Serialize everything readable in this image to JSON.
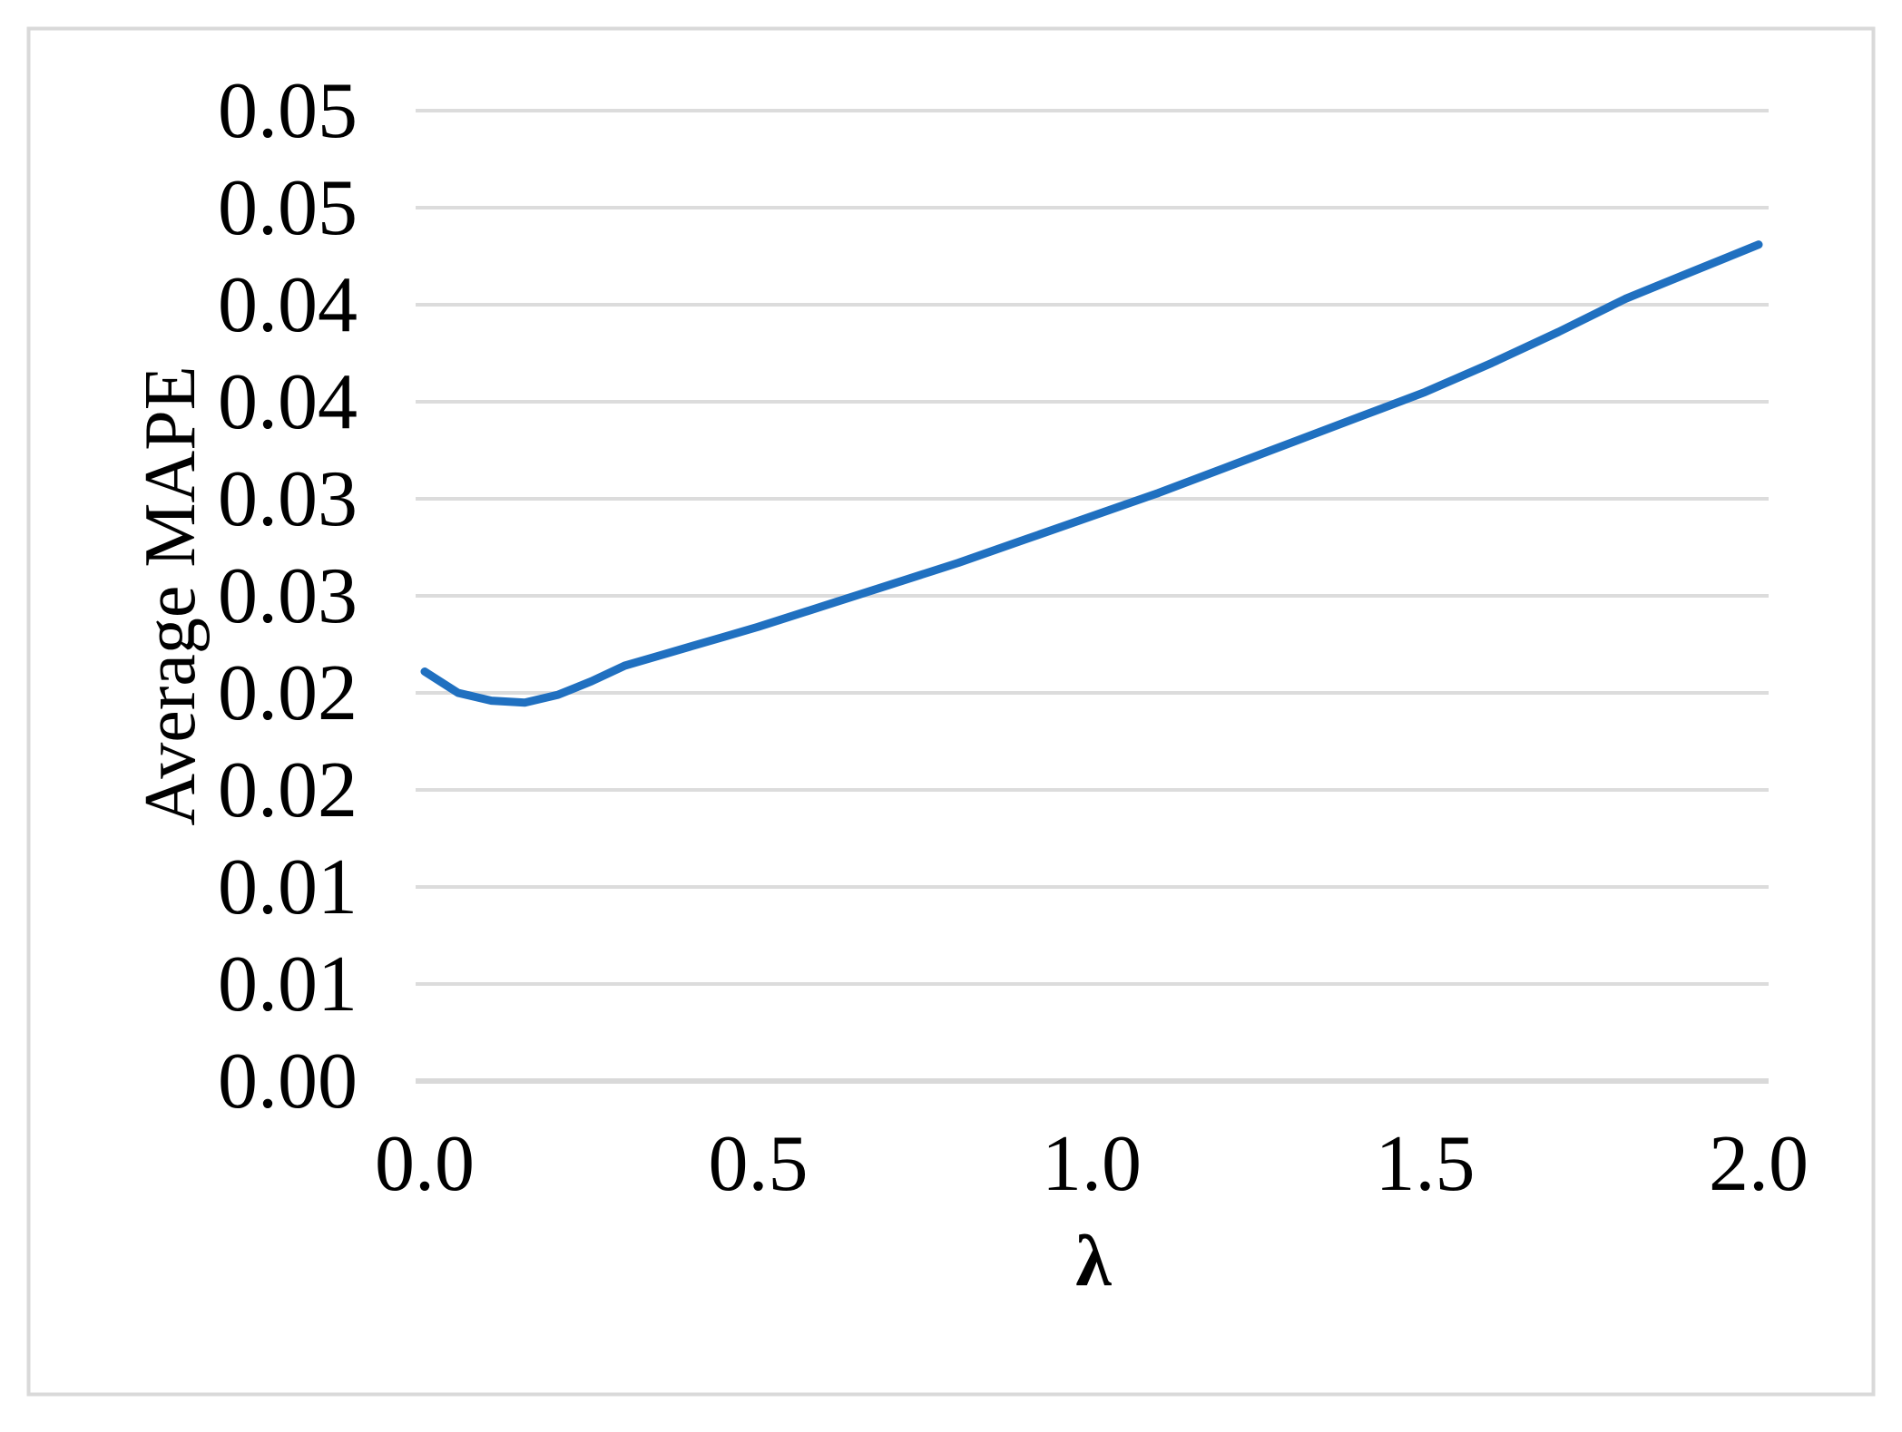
{
  "chart_data": {
    "type": "line",
    "title": "",
    "xlabel": "λ",
    "ylabel": "Average MAPE",
    "xlim": [
      0.0,
      2.0
    ],
    "ylim": [
      0.0,
      0.05
    ],
    "grid": true,
    "legend": "none",
    "gridline_color": "#DCDCDC",
    "axis_line_color": "#D9D9D9",
    "border_color": "#D9D9D9",
    "x_ticks": [
      {
        "value": 0.0,
        "label": "0.0"
      },
      {
        "value": 0.5,
        "label": "0.5"
      },
      {
        "value": 1.0,
        "label": "1.0"
      },
      {
        "value": 1.5,
        "label": "1.5"
      },
      {
        "value": 2.0,
        "label": "2.0"
      }
    ],
    "y_ticks": [
      {
        "value": 0.05,
        "label": "0.05"
      },
      {
        "value": 0.045,
        "label": "0.05"
      },
      {
        "value": 0.04,
        "label": "0.04"
      },
      {
        "value": 0.035,
        "label": "0.04"
      },
      {
        "value": 0.03,
        "label": "0.03"
      },
      {
        "value": 0.025,
        "label": "0.03"
      },
      {
        "value": 0.02,
        "label": "0.02"
      },
      {
        "value": 0.015,
        "label": "0.02"
      },
      {
        "value": 0.01,
        "label": "0.01"
      },
      {
        "value": 0.005,
        "label": "0.01"
      },
      {
        "value": 0.0,
        "label": "0.00"
      }
    ],
    "series": [
      {
        "name": "Average MAPE",
        "color": "#2070C0",
        "points": [
          [
            0.0,
            0.0211
          ],
          [
            0.05,
            0.02
          ],
          [
            0.1,
            0.0196
          ],
          [
            0.15,
            0.0195
          ],
          [
            0.2,
            0.0199
          ],
          [
            0.25,
            0.0206
          ],
          [
            0.3,
            0.0214
          ],
          [
            0.35,
            0.0219
          ],
          [
            0.4,
            0.0224
          ],
          [
            0.45,
            0.0229
          ],
          [
            0.5,
            0.0234
          ],
          [
            0.6,
            0.0245
          ],
          [
            0.7,
            0.0256
          ],
          [
            0.8,
            0.0267
          ],
          [
            0.9,
            0.0279
          ],
          [
            1.0,
            0.0291
          ],
          [
            1.1,
            0.0303
          ],
          [
            1.2,
            0.0316
          ],
          [
            1.3,
            0.0329
          ],
          [
            1.4,
            0.0342
          ],
          [
            1.5,
            0.0355
          ],
          [
            1.6,
            0.037
          ],
          [
            1.7,
            0.0386
          ],
          [
            1.8,
            0.0403
          ],
          [
            1.9,
            0.0417
          ],
          [
            2.0,
            0.0431
          ]
        ]
      }
    ]
  }
}
